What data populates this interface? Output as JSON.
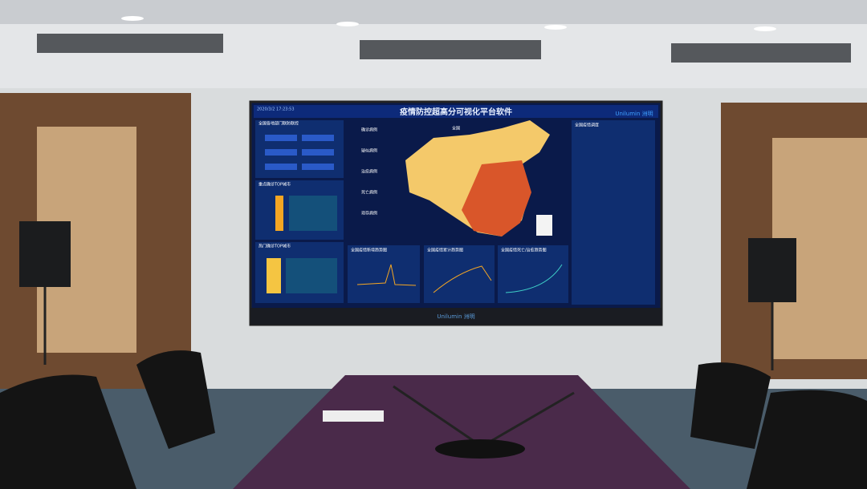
{
  "screen": {
    "title": "疫情防控超高分可视化平台软件",
    "timestamp": "2020/3/2 17:23:53",
    "brand_top": "Unilumin 洲明",
    "brand_bottom": "Unilumin 洲明",
    "map_label": "全国",
    "left_panels": [
      "全国各地部门联防联控",
      "重点确诊TOP城市",
      "热门确诊TOP城市"
    ],
    "stats": [
      "确诊病例",
      "疑似病例",
      "治愈病例",
      "死亡病例",
      "现存病例"
    ],
    "right_panel": "全国疫情调度",
    "charts": [
      "全国疫情新增趋势图",
      "全国疫情累计趋势图",
      "全国疫情死亡/治愈趋势图"
    ]
  }
}
